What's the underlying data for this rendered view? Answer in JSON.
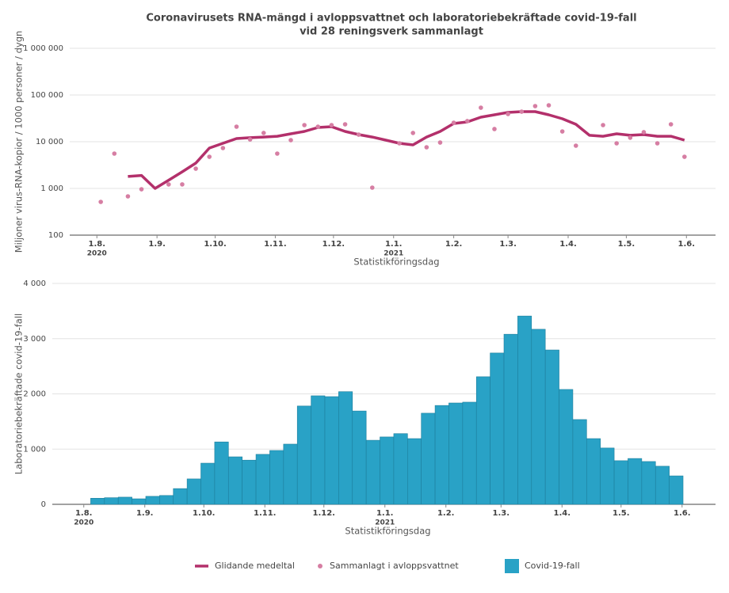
{
  "chart_data": [
    {
      "type": "line",
      "title": [
        "Coronavirusets RNA-mängd i avloppsvattnet och laboratoriebekräftade covid-19-fall",
        "vid 28 reningsverk sammanlagt"
      ],
      "y_label": "Miljoner virus-RNA-kopior / 1000 personer / dygn",
      "x_label": "Statistikföringsdag",
      "log_y": true,
      "grid": true,
      "ylim": [
        100,
        1000000
      ],
      "yticks": [
        100,
        {
          "value": 1000,
          "label": "1 000"
        },
        {
          "value": 10000,
          "label": "10 000"
        },
        {
          "value": 100000,
          "label": "100 000"
        },
        {
          "value": 1000000,
          "label": "1 000 000"
        }
      ],
      "xlim": [
        "2020-07-18",
        "2021-06-16"
      ],
      "xticks": [
        {
          "value": "2020-08-01",
          "label": "1.8."
        },
        {
          "value": "2020-09-01",
          "label": "1.9."
        },
        {
          "value": "2020-10-01",
          "label": "1.10."
        },
        {
          "value": "2020-11-01",
          "label": "1.11."
        },
        {
          "value": "2020-12-01",
          "label": "1.12."
        },
        {
          "value": "2021-01-01",
          "label": "1.1."
        },
        {
          "value": "2021-02-01",
          "label": "1.2."
        },
        {
          "value": "2021-03-01",
          "label": "1.3."
        },
        {
          "value": "2021-04-01",
          "label": "1.4."
        },
        {
          "value": "2021-05-01",
          "label": "1.5."
        },
        {
          "value": "2021-06-01",
          "label": "1.6."
        }
      ],
      "x_year_labels": [
        {
          "value": "2020-08-01",
          "label": "2020"
        },
        {
          "value": "2021-01-01",
          "label": "2021"
        }
      ],
      "series": [
        {
          "name": "Glidande medeltal",
          "type": "line",
          "color": "#b3306b",
          "x": [
            "2020-08-17",
            "2020-08-24",
            "2020-08-31",
            "2020-09-07",
            "2020-09-14",
            "2020-09-21",
            "2020-09-28",
            "2020-10-05",
            "2020-10-12",
            "2020-10-19",
            "2020-10-26",
            "2020-11-02",
            "2020-11-09",
            "2020-11-16",
            "2020-11-23",
            "2020-11-30",
            "2020-12-07",
            "2020-12-14",
            "2020-12-21",
            "2020-12-28",
            "2021-01-04",
            "2021-01-11",
            "2021-01-18",
            "2021-01-25",
            "2021-02-01",
            "2021-02-08",
            "2021-02-15",
            "2021-02-22",
            "2021-03-01",
            "2021-03-08",
            "2021-03-15",
            "2021-03-22",
            "2021-03-29",
            "2021-04-05",
            "2021-04-12",
            "2021-04-19",
            "2021-04-26",
            "2021-05-03",
            "2021-05-10",
            "2021-05-17",
            "2021-05-24",
            "2021-05-31"
          ],
          "values": [
            1800,
            1900,
            1000,
            1500,
            2270,
            3480,
            7320,
            9250,
            11700,
            12200,
            12600,
            13100,
            14800,
            16600,
            20200,
            21000,
            16600,
            14200,
            12600,
            10800,
            9250,
            8550,
            12600,
            16600,
            24500,
            26500,
            33500,
            37700,
            42400,
            44000,
            44000,
            37700,
            31000,
            23600,
            13700,
            13100,
            14800,
            13700,
            14200,
            13100,
            13100,
            10800
          ]
        },
        {
          "name": "Sammanlagt i avloppsvattnet",
          "type": "scatter",
          "color": "#d67ea3",
          "x": [
            "2020-08-03",
            "2020-08-10",
            "2020-08-17",
            "2020-08-24",
            "2020-09-07",
            "2020-09-14",
            "2020-09-21",
            "2020-09-28",
            "2020-10-05",
            "2020-10-12",
            "2020-10-19",
            "2020-10-26",
            "2020-11-02",
            "2020-11-09",
            "2020-11-16",
            "2020-11-23",
            "2020-11-30",
            "2020-12-07",
            "2020-12-14",
            "2020-12-21",
            "2021-01-04",
            "2021-01-11",
            "2021-01-18",
            "2021-01-25",
            "2021-02-01",
            "2021-02-08",
            "2021-02-15",
            "2021-02-22",
            "2021-03-01",
            "2021-03-08",
            "2021-03-15",
            "2021-03-22",
            "2021-03-29",
            "2021-04-05",
            "2021-04-19",
            "2021-04-26",
            "2021-05-03",
            "2021-05-10",
            "2021-05-17",
            "2021-05-24",
            "2021-05-31"
          ],
          "values": [
            515,
            5570,
            677,
            961,
            1220,
            1220,
            2650,
            4760,
            7320,
            21000,
            11200,
            15400,
            5570,
            10800,
            22700,
            21000,
            22700,
            23600,
            14200,
            1040,
            9250,
            15400,
            7610,
            9610,
            25500,
            27600,
            53500,
            18700,
            39200,
            44000,
            57900,
            60200,
            16600,
            8230,
            22700,
            9250,
            12200,
            16000,
            9250,
            23600,
            4760
          ]
        }
      ]
    },
    {
      "type": "bar",
      "y_label": "Laboratoriebekräftade covid-19-fall",
      "x_label": "Statistikföringsdag",
      "grid": true,
      "ylim": [
        0,
        4000
      ],
      "yticks": [
        0,
        {
          "value": 1000,
          "label": "1 000"
        },
        {
          "value": 2000,
          "label": "2 000"
        },
        {
          "value": 3000,
          "label": "3 000"
        },
        {
          "value": 4000,
          "label": "4 000"
        }
      ],
      "xlim": [
        "2020-07-16",
        "2021-06-18"
      ],
      "xticks": [
        {
          "value": "2020-08-01",
          "label": "1.8."
        },
        {
          "value": "2020-09-01",
          "label": "1.9."
        },
        {
          "value": "2020-10-01",
          "label": "1.10."
        },
        {
          "value": "2020-11-01",
          "label": "1.11."
        },
        {
          "value": "2020-12-01",
          "label": "1.12."
        },
        {
          "value": "2021-01-01",
          "label": "1.1."
        },
        {
          "value": "2021-02-01",
          "label": "1.2."
        },
        {
          "value": "2021-03-01",
          "label": "1.3."
        },
        {
          "value": "2021-04-01",
          "label": "1.4."
        },
        {
          "value": "2021-05-01",
          "label": "1.5."
        },
        {
          "value": "2021-06-01",
          "label": "1.6."
        }
      ],
      "x_year_labels": [
        {
          "value": "2020-08-01",
          "label": "2020"
        },
        {
          "value": "2021-01-01",
          "label": "2021"
        }
      ],
      "series": [
        {
          "name": "Covid-19-fall",
          "type": "bar",
          "color": "#29a2c6",
          "x": [
            "2020-08-08",
            "2020-08-15",
            "2020-08-22",
            "2020-08-29",
            "2020-09-05",
            "2020-09-12",
            "2020-09-19",
            "2020-09-26",
            "2020-10-03",
            "2020-10-10",
            "2020-10-17",
            "2020-10-24",
            "2020-10-31",
            "2020-11-07",
            "2020-11-14",
            "2020-11-21",
            "2020-11-28",
            "2020-12-05",
            "2020-12-12",
            "2020-12-19",
            "2020-12-26",
            "2021-01-02",
            "2021-01-09",
            "2021-01-16",
            "2021-01-23",
            "2021-01-30",
            "2021-02-06",
            "2021-02-13",
            "2021-02-20",
            "2021-02-27",
            "2021-03-06",
            "2021-03-13",
            "2021-03-20",
            "2021-03-27",
            "2021-04-03",
            "2021-04-10",
            "2021-04-17",
            "2021-04-24",
            "2021-05-01",
            "2021-05-08",
            "2021-05-15",
            "2021-05-22",
            "2021-05-29"
          ],
          "values": [
            110,
            120,
            130,
            100,
            145,
            160,
            285,
            460,
            745,
            1130,
            860,
            800,
            905,
            975,
            1090,
            1780,
            1965,
            1950,
            2040,
            1690,
            1160,
            1220,
            1280,
            1190,
            1650,
            1790,
            1835,
            1850,
            2310,
            2740,
            3080,
            3410,
            3170,
            2795,
            2080,
            1535,
            1190,
            1020,
            790,
            830,
            775,
            690,
            515
          ]
        }
      ]
    }
  ]
}
